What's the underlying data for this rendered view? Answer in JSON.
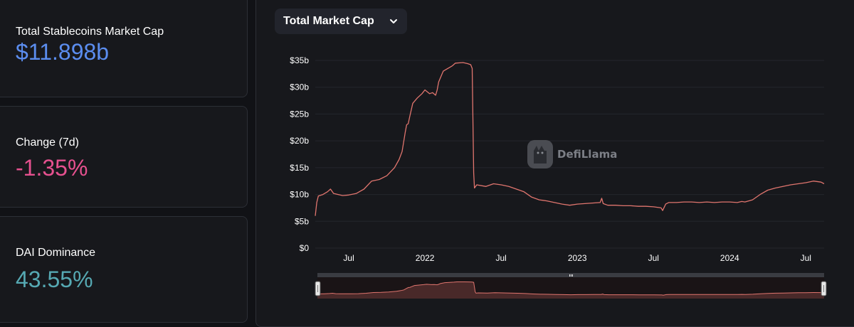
{
  "cards": [
    {
      "label": "Total Stablecoins Market Cap",
      "value": "$11.898b",
      "color": "#5b8def"
    },
    {
      "label": "Change (7d)",
      "value": "-1.35%",
      "color": "#e6518f"
    },
    {
      "label": "DAI Dominance",
      "value": "43.55%",
      "color": "#56a9b3"
    }
  ],
  "metric_select": {
    "label": "Total Market Cap"
  },
  "watermark": {
    "text": "DefiLlama"
  },
  "chart_data": {
    "type": "line",
    "title": "Total Market Cap",
    "ylabel": "",
    "xlabel": "",
    "ylim": [
      0,
      35
    ],
    "yticks": [
      0,
      5,
      10,
      15,
      20,
      25,
      30,
      35
    ],
    "ytick_labels": [
      "$0",
      "$5b",
      "$10b",
      "$15b",
      "$20b",
      "$25b",
      "$30b",
      "$35b"
    ],
    "xlim": [
      2021.28,
      2024.62
    ],
    "xticks": [
      {
        "x": 2021.5,
        "label": "Jul"
      },
      {
        "x": 2022.0,
        "label": "2022"
      },
      {
        "x": 2022.5,
        "label": "Jul"
      },
      {
        "x": 2023.0,
        "label": "2023"
      },
      {
        "x": 2023.5,
        "label": "Jul"
      },
      {
        "x": 2024.0,
        "label": "2024"
      },
      {
        "x": 2024.5,
        "label": "Jul"
      }
    ],
    "line_color": "#e0756e",
    "series": [
      {
        "name": "Total Market Cap",
        "x": [
          2021.28,
          2021.29,
          2021.3,
          2021.33,
          2021.36,
          2021.38,
          2021.4,
          2021.43,
          2021.46,
          2021.5,
          2021.55,
          2021.6,
          2021.65,
          2021.7,
          2021.75,
          2021.8,
          2021.83,
          2021.85,
          2021.87,
          2021.88,
          2021.89,
          2021.9,
          2021.92,
          2021.95,
          2021.98,
          2022.0,
          2022.03,
          2022.05,
          2022.07,
          2022.08,
          2022.09,
          2022.12,
          2022.15,
          2022.18,
          2022.2,
          2022.25,
          2022.28,
          2022.3,
          2022.31,
          2022.32,
          2022.325,
          2022.34,
          2022.4,
          2022.45,
          2022.5,
          2022.55,
          2022.6,
          2022.65,
          2022.7,
          2022.75,
          2022.8,
          2022.85,
          2022.9,
          2022.95,
          2023.0,
          2023.05,
          2023.1,
          2023.15,
          2023.16,
          2023.17,
          2023.2,
          2023.25,
          2023.3,
          2023.35,
          2023.4,
          2023.45,
          2023.5,
          2023.55,
          2023.56,
          2023.58,
          2023.6,
          2023.65,
          2023.7,
          2023.75,
          2023.8,
          2023.85,
          2023.9,
          2023.95,
          2024.0,
          2024.05,
          2024.08,
          2024.1,
          2024.15,
          2024.2,
          2024.25,
          2024.3,
          2024.35,
          2024.4,
          2024.45,
          2024.5,
          2024.55,
          2024.6,
          2024.62
        ],
        "values": [
          6.0,
          8.5,
          9.7,
          10.0,
          10.5,
          11.0,
          10.2,
          10.0,
          9.8,
          9.9,
          10.2,
          11.0,
          12.5,
          12.8,
          13.5,
          15.0,
          16.5,
          18.0,
          21.5,
          23.0,
          23.2,
          24.5,
          27.0,
          28.0,
          28.8,
          29.5,
          28.8,
          29.0,
          28.5,
          29.5,
          31.0,
          33.0,
          33.5,
          34.0,
          34.5,
          34.6,
          34.4,
          34.2,
          33.5,
          14.0,
          11.2,
          11.8,
          11.5,
          12.0,
          11.8,
          11.5,
          11.0,
          10.5,
          9.5,
          9.0,
          8.8,
          8.5,
          8.2,
          8.0,
          8.2,
          8.3,
          8.4,
          8.5,
          9.3,
          8.3,
          8.0,
          8.0,
          7.9,
          7.9,
          7.8,
          7.8,
          7.7,
          7.5,
          7.0,
          8.2,
          8.5,
          8.5,
          8.6,
          8.6,
          8.5,
          8.6,
          8.5,
          8.6,
          8.6,
          8.5,
          8.7,
          8.6,
          9.0,
          10.0,
          10.8,
          11.2,
          11.5,
          11.8,
          12.0,
          12.2,
          12.5,
          12.3,
          12.0
        ]
      }
    ]
  }
}
